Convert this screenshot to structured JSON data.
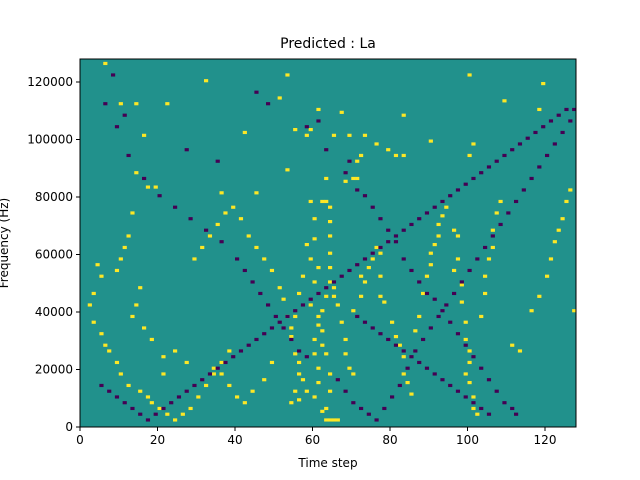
{
  "chart_data": {
    "type": "heatmap",
    "title": "Predicted : La",
    "xlabel": "Time step",
    "ylabel": "Frequency (Hz)",
    "xlim": [
      0,
      128
    ],
    "ylim": [
      0,
      128000
    ],
    "x_ticks": [
      {
        "value": 0,
        "label": "0"
      },
      {
        "value": 20,
        "label": "20"
      },
      {
        "value": 40,
        "label": "40"
      },
      {
        "value": 60,
        "label": "60"
      },
      {
        "value": 80,
        "label": "80"
      },
      {
        "value": 100,
        "label": "100"
      },
      {
        "value": 120,
        "label": "120"
      }
    ],
    "y_ticks": [
      {
        "value": 0,
        "label": "0"
      },
      {
        "value": 20000,
        "label": "20000"
      },
      {
        "value": 40000,
        "label": "40000"
      },
      {
        "value": 60000,
        "label": "60000"
      },
      {
        "value": 80000,
        "label": "80000"
      },
      {
        "value": 100000,
        "label": "100000"
      },
      {
        "value": 120000,
        "label": "120000"
      }
    ],
    "grid": false,
    "colormap": {
      "low": "#440154",
      "mid": "#21918c",
      "high": "#fde725"
    },
    "background_value": 0,
    "rows": 128,
    "cols": 128,
    "cells_high": [
      [
        6,
        126
      ],
      [
        32,
        120
      ],
      [
        53,
        122
      ],
      [
        100,
        122
      ],
      [
        119,
        119
      ],
      [
        22,
        112
      ],
      [
        51,
        114
      ],
      [
        61,
        110
      ],
      [
        10,
        112
      ],
      [
        14,
        112
      ],
      [
        67,
        109
      ],
      [
        83,
        108
      ],
      [
        109,
        113
      ],
      [
        118,
        110
      ],
      [
        16,
        101
      ],
      [
        42,
        102
      ],
      [
        55,
        103
      ],
      [
        58,
        101
      ],
      [
        59,
        103
      ],
      [
        65,
        101
      ],
      [
        69,
        101
      ],
      [
        73,
        101
      ],
      [
        53,
        89
      ],
      [
        68,
        85
      ],
      [
        70,
        86
      ],
      [
        71,
        86
      ],
      [
        71,
        92
      ],
      [
        72,
        94
      ],
      [
        76,
        98
      ],
      [
        79,
        96
      ],
      [
        81,
        94
      ],
      [
        83,
        94
      ],
      [
        90,
        99
      ],
      [
        100,
        94
      ],
      [
        101,
        98
      ],
      [
        17,
        83
      ],
      [
        19,
        83
      ],
      [
        36,
        81
      ],
      [
        45,
        81
      ],
      [
        59,
        78
      ],
      [
        62,
        78
      ],
      [
        63,
        86
      ],
      [
        63,
        78
      ],
      [
        64,
        71
      ],
      [
        64,
        76
      ],
      [
        64,
        66
      ],
      [
        64,
        60
      ],
      [
        64,
        55
      ],
      [
        64,
        50
      ],
      [
        65,
        45
      ],
      [
        63,
        45
      ],
      [
        62,
        40
      ],
      [
        61,
        35
      ],
      [
        60,
        30
      ],
      [
        60,
        25
      ],
      [
        61,
        20
      ],
      [
        61,
        15
      ],
      [
        60,
        10
      ],
      [
        62,
        5
      ],
      [
        63,
        2
      ],
      [
        64,
        2
      ],
      [
        65,
        2
      ],
      [
        66,
        2
      ],
      [
        63,
        6
      ],
      [
        64,
        12
      ],
      [
        64,
        18
      ],
      [
        63,
        25
      ],
      [
        62,
        28
      ],
      [
        62,
        33
      ],
      [
        61,
        38
      ],
      [
        59,
        42
      ],
      [
        60,
        50
      ],
      [
        61,
        55
      ],
      [
        59,
        58
      ],
      [
        60,
        65
      ],
      [
        60,
        72
      ],
      [
        58,
        63
      ],
      [
        57,
        52
      ],
      [
        56,
        46
      ],
      [
        55,
        38
      ],
      [
        54,
        31
      ],
      [
        55,
        25
      ],
      [
        56,
        18
      ],
      [
        55,
        12
      ],
      [
        54,
        8
      ],
      [
        56,
        9
      ],
      [
        66,
        42
      ],
      [
        65,
        48
      ],
      [
        67,
        36
      ],
      [
        68,
        30
      ],
      [
        68,
        25
      ],
      [
        69,
        20
      ],
      [
        70,
        18
      ],
      [
        70,
        40
      ],
      [
        72,
        45
      ],
      [
        72,
        52
      ],
      [
        73,
        50
      ],
      [
        74,
        55
      ],
      [
        75,
        58
      ],
      [
        76,
        62
      ],
      [
        77,
        60
      ],
      [
        77,
        52
      ],
      [
        77,
        45
      ],
      [
        78,
        43
      ],
      [
        80,
        36
      ],
      [
        81,
        31
      ],
      [
        82,
        28
      ],
      [
        83,
        24
      ],
      [
        83,
        18
      ],
      [
        84,
        15
      ],
      [
        85,
        11
      ],
      [
        86,
        33
      ],
      [
        87,
        38
      ],
      [
        88,
        46
      ],
      [
        89,
        52
      ],
      [
        90,
        56
      ],
      [
        90,
        60
      ],
      [
        91,
        63
      ],
      [
        92,
        66
      ],
      [
        92,
        70
      ],
      [
        93,
        73
      ],
      [
        94,
        76
      ],
      [
        96,
        68
      ],
      [
        97,
        66
      ],
      [
        97,
        58
      ],
      [
        96,
        54
      ],
      [
        98,
        49
      ],
      [
        98,
        43
      ],
      [
        99,
        36
      ],
      [
        99,
        30
      ],
      [
        100,
        26
      ],
      [
        100,
        22
      ],
      [
        99,
        18
      ],
      [
        100,
        15
      ],
      [
        101,
        10
      ],
      [
        101,
        6
      ],
      [
        102,
        4
      ],
      [
        103,
        38
      ],
      [
        104,
        46
      ],
      [
        104,
        52
      ],
      [
        105,
        58
      ],
      [
        106,
        62
      ],
      [
        106,
        68
      ],
      [
        107,
        74
      ],
      [
        108,
        78
      ],
      [
        111,
        28
      ],
      [
        113,
        26
      ],
      [
        116,
        40
      ],
      [
        118,
        45
      ],
      [
        120,
        52
      ],
      [
        121,
        58
      ],
      [
        122,
        64
      ],
      [
        123,
        68
      ],
      [
        124,
        72
      ],
      [
        125,
        78
      ],
      [
        126,
        82
      ],
      [
        127,
        40
      ],
      [
        4,
        56
      ],
      [
        5,
        52
      ],
      [
        3,
        46
      ],
      [
        2,
        42
      ],
      [
        3,
        36
      ],
      [
        5,
        32
      ],
      [
        6,
        28
      ],
      [
        7,
        26
      ],
      [
        9,
        22
      ],
      [
        10,
        18
      ],
      [
        12,
        14
      ],
      [
        15,
        12
      ],
      [
        17,
        10
      ],
      [
        18,
        8
      ],
      [
        20,
        6
      ],
      [
        22,
        4
      ],
      [
        24,
        2
      ],
      [
        26,
        4
      ],
      [
        28,
        6
      ],
      [
        30,
        10
      ],
      [
        32,
        14
      ],
      [
        34,
        18
      ],
      [
        36,
        22
      ],
      [
        38,
        26
      ],
      [
        14,
        88
      ],
      [
        13,
        74
      ],
      [
        12,
        66
      ],
      [
        11,
        62
      ],
      [
        10,
        58
      ],
      [
        9,
        54
      ],
      [
        15,
        48
      ],
      [
        14,
        42
      ],
      [
        13,
        38
      ],
      [
        16,
        34
      ],
      [
        18,
        30
      ],
      [
        21,
        18
      ],
      [
        21,
        24
      ],
      [
        24,
        26
      ],
      [
        27,
        22
      ],
      [
        29,
        58
      ],
      [
        31,
        62
      ],
      [
        33,
        66
      ],
      [
        35,
        70
      ],
      [
        37,
        74
      ],
      [
        39,
        76
      ],
      [
        41,
        72
      ],
      [
        43,
        66
      ],
      [
        45,
        62
      ],
      [
        47,
        58
      ],
      [
        49,
        54
      ],
      [
        51,
        48
      ],
      [
        52,
        44
      ],
      [
        53,
        38
      ],
      [
        54,
        34
      ],
      [
        56,
        22
      ],
      [
        57,
        16
      ],
      [
        58,
        12
      ],
      [
        49,
        22
      ],
      [
        47,
        16
      ],
      [
        44,
        12
      ],
      [
        42,
        8
      ],
      [
        40,
        10
      ],
      [
        38,
        14
      ],
      [
        36,
        18
      ],
      [
        34,
        20
      ]
    ],
    "cells_low": [
      [
        8,
        122
      ],
      [
        11,
        108
      ],
      [
        27,
        96
      ],
      [
        35,
        92
      ],
      [
        45,
        116
      ],
      [
        48,
        112
      ],
      [
        58,
        104
      ],
      [
        61,
        106
      ],
      [
        63,
        96
      ],
      [
        68,
        88
      ],
      [
        69,
        92
      ],
      [
        71,
        82
      ],
      [
        73,
        80
      ],
      [
        75,
        76
      ],
      [
        77,
        72
      ],
      [
        79,
        68
      ],
      [
        81,
        64
      ],
      [
        83,
        58
      ],
      [
        85,
        54
      ],
      [
        87,
        50
      ],
      [
        89,
        46
      ],
      [
        91,
        44
      ],
      [
        93,
        40
      ],
      [
        95,
        36
      ],
      [
        97,
        32
      ],
      [
        99,
        28
      ],
      [
        101,
        24
      ],
      [
        103,
        20
      ],
      [
        105,
        16
      ],
      [
        107,
        12
      ],
      [
        109,
        8
      ],
      [
        111,
        6
      ],
      [
        112,
        4
      ],
      [
        6,
        112
      ],
      [
        9,
        104
      ],
      [
        12,
        94
      ],
      [
        16,
        86
      ],
      [
        20,
        80
      ],
      [
        24,
        76
      ],
      [
        28,
        72
      ],
      [
        32,
        68
      ],
      [
        36,
        64
      ],
      [
        40,
        58
      ],
      [
        42,
        54
      ],
      [
        44,
        50
      ],
      [
        46,
        46
      ],
      [
        48,
        42
      ],
      [
        50,
        38
      ],
      [
        52,
        34
      ],
      [
        54,
        30
      ],
      [
        56,
        26
      ],
      [
        58,
        24
      ],
      [
        66,
        16
      ],
      [
        68,
        12
      ],
      [
        70,
        8
      ],
      [
        72,
        6
      ],
      [
        74,
        4
      ],
      [
        76,
        2
      ],
      [
        78,
        6
      ],
      [
        80,
        10
      ],
      [
        82,
        14
      ],
      [
        84,
        20
      ],
      [
        86,
        26
      ],
      [
        88,
        30
      ],
      [
        90,
        34
      ],
      [
        92,
        38
      ],
      [
        94,
        42
      ],
      [
        96,
        46
      ],
      [
        98,
        50
      ],
      [
        100,
        54
      ],
      [
        102,
        58
      ],
      [
        104,
        62
      ],
      [
        106,
        66
      ],
      [
        108,
        70
      ],
      [
        110,
        74
      ],
      [
        112,
        78
      ],
      [
        114,
        82
      ],
      [
        116,
        86
      ],
      [
        118,
        90
      ],
      [
        120,
        94
      ],
      [
        122,
        98
      ],
      [
        124,
        102
      ],
      [
        126,
        106
      ],
      [
        127,
        110
      ],
      [
        5,
        14
      ],
      [
        7,
        12
      ],
      [
        9,
        10
      ],
      [
        11,
        8
      ],
      [
        13,
        6
      ],
      [
        15,
        4
      ],
      [
        17,
        2
      ],
      [
        19,
        4
      ],
      [
        21,
        6
      ],
      [
        23,
        8
      ],
      [
        25,
        10
      ],
      [
        27,
        12
      ],
      [
        29,
        14
      ],
      [
        31,
        16
      ],
      [
        33,
        18
      ],
      [
        35,
        20
      ],
      [
        37,
        22
      ],
      [
        39,
        24
      ],
      [
        41,
        26
      ],
      [
        43,
        28
      ],
      [
        45,
        30
      ],
      [
        47,
        32
      ],
      [
        49,
        34
      ],
      [
        51,
        36
      ],
      [
        53,
        38
      ],
      [
        55,
        40
      ],
      [
        57,
        42
      ],
      [
        59,
        44
      ],
      [
        61,
        46
      ],
      [
        63,
        48
      ],
      [
        65,
        50
      ],
      [
        67,
        52
      ],
      [
        69,
        54
      ],
      [
        71,
        56
      ],
      [
        73,
        58
      ],
      [
        75,
        60
      ],
      [
        77,
        62
      ],
      [
        79,
        64
      ],
      [
        81,
        66
      ],
      [
        83,
        68
      ],
      [
        85,
        70
      ],
      [
        87,
        72
      ],
      [
        89,
        74
      ],
      [
        91,
        76
      ],
      [
        93,
        78
      ],
      [
        95,
        80
      ],
      [
        97,
        82
      ],
      [
        99,
        84
      ],
      [
        101,
        86
      ],
      [
        103,
        88
      ],
      [
        105,
        90
      ],
      [
        107,
        92
      ],
      [
        109,
        94
      ],
      [
        111,
        96
      ],
      [
        113,
        98
      ],
      [
        115,
        100
      ],
      [
        117,
        102
      ],
      [
        119,
        104
      ],
      [
        121,
        106
      ],
      [
        123,
        108
      ],
      [
        125,
        110
      ],
      [
        71,
        38
      ],
      [
        73,
        36
      ],
      [
        75,
        34
      ],
      [
        77,
        32
      ],
      [
        79,
        30
      ],
      [
        81,
        28
      ],
      [
        83,
        26
      ],
      [
        85,
        24
      ],
      [
        87,
        22
      ],
      [
        89,
        20
      ],
      [
        91,
        18
      ],
      [
        93,
        16
      ],
      [
        95,
        14
      ],
      [
        97,
        12
      ],
      [
        99,
        10
      ],
      [
        101,
        8
      ],
      [
        103,
        6
      ],
      [
        105,
        4
      ]
    ]
  }
}
